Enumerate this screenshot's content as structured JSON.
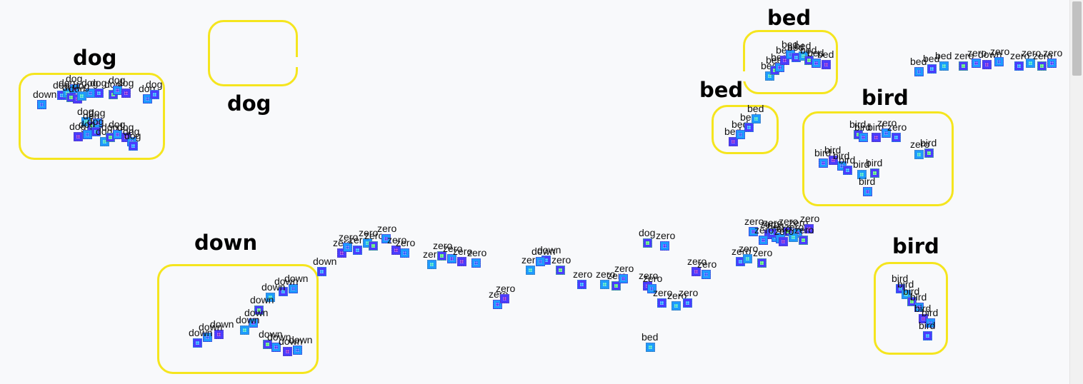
{
  "colors": {
    "highlight": "#f5e51e",
    "tile_palette": [
      "#2a5cff",
      "#1e9bff",
      "#31d4c8",
      "#4fe870",
      "#4a3cff",
      "#7a1fd6"
    ]
  },
  "cluster_labels": [
    "dog",
    "dog",
    "bed",
    "bed",
    "bird",
    "down",
    "bird"
  ],
  "points": [
    "down",
    "dog",
    "dog",
    "dog",
    "dog",
    "dog",
    "dog",
    "dog",
    "dog",
    "dog",
    "dog",
    "dog",
    "dog",
    "dog",
    "dog",
    "dog",
    "dog",
    "dog",
    "dog",
    "dog",
    "dog",
    "dog",
    "dog",
    "dog",
    "dog",
    "dog",
    "bed",
    "bed",
    "bed",
    "bed",
    "bed",
    "bed",
    "bed",
    "bed",
    "bed",
    "bed",
    "bed",
    "bed",
    "bed",
    "zero",
    "zero",
    "down",
    "zero",
    "zero",
    "zero",
    "zero",
    "zero",
    "bed",
    "bed",
    "bed",
    "bed",
    "bird",
    "bird",
    "bird",
    "zero",
    "zero",
    "zero",
    "bird",
    "bird",
    "bird",
    "bird",
    "bird",
    "bird",
    "bird",
    "bird",
    "zero",
    "zero",
    "zero",
    "zero",
    "zero",
    "zero",
    "zero",
    "zero",
    "down",
    "zero",
    "zero",
    "zero",
    "zero",
    "zero",
    "down",
    "zero",
    "zero",
    "zero",
    "zero",
    "down",
    "zero",
    "zero",
    "zero",
    "zero",
    "zero",
    "zero",
    "zero",
    "zero",
    "dog",
    "zero",
    "zero",
    "zero",
    "zero",
    "zero",
    "zero",
    "zero",
    "zero",
    "bed",
    "zero",
    "bed",
    "zero",
    "zero",
    "zero",
    "zero",
    "zero",
    "zero",
    "zero",
    "zero",
    "zero",
    "down",
    "down",
    "down",
    "down",
    "down",
    "down",
    "down",
    "down",
    "down",
    "down",
    "down",
    "down",
    "down",
    "bird",
    "bird",
    "bird",
    "bird",
    "bird",
    "bird",
    "bird"
  ]
}
